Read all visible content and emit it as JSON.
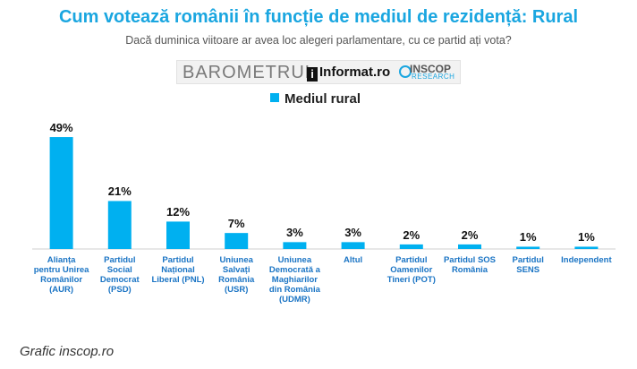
{
  "header": {
    "title": "Cum votează românii în funcție de mediul de rezidență: Rural",
    "subtitle": "Dacă duminica viitoare ar avea loc alegeri parlamentare, cu ce partid ați vota?"
  },
  "logos": {
    "barometrul": "BAROMETRUL",
    "informat": "Informat",
    "informat_suffix": "ro",
    "inscop": "INSCOP",
    "research": "RESEARCH"
  },
  "legend": {
    "label": "Mediul rural"
  },
  "caption": "Grafic inscop.ro",
  "colors": {
    "bar": "#00b0f0",
    "title": "#1aa6e0",
    "category": "#1a74c4"
  },
  "chart_data": {
    "type": "bar",
    "title": "Cum votează românii în funcție de mediul de rezidență: Rural",
    "subtitle": "Dacă duminica viitoare ar avea loc alegeri parlamentare, cu ce partid ați vota?",
    "xlabel": "",
    "ylabel": "",
    "ylim": [
      0,
      55
    ],
    "grid": false,
    "legend_position": "top-center",
    "categories": [
      "Alianța pentru Unirea Românilor (AUR)",
      "Partidul Social Democrat (PSD)",
      "Partidul Național Liberal (PNL)",
      "Uniunea Salvați România (USR)",
      "Uniunea Democrată a Maghiarilor din România (UDMR)",
      "Altul",
      "Partidul Oamenilor Tineri (POT)",
      "Partidul SOS România",
      "Partidul SENS",
      "Independent"
    ],
    "category_lines": [
      [
        "Alianța",
        "pentru Unirea",
        "Românilor",
        "(AUR)"
      ],
      [
        "Partidul",
        "Social",
        "Democrat",
        "(PSD)"
      ],
      [
        "Partidul",
        "Național",
        "Liberal (PNL)"
      ],
      [
        "Uniunea",
        "Salvați",
        "România",
        "(USR)"
      ],
      [
        "Uniunea",
        "Democrată a",
        "Maghiarilor",
        "din România",
        "(UDMR)"
      ],
      [
        "Altul"
      ],
      [
        "Partidul",
        "Oamenilor",
        "Tineri (POT)"
      ],
      [
        "Partidul SOS",
        "România"
      ],
      [
        "Partidul",
        "SENS"
      ],
      [
        "Independent"
      ]
    ],
    "series": [
      {
        "name": "Mediul rural",
        "values": [
          49,
          21,
          12,
          7,
          3,
          3,
          2,
          2,
          1,
          1
        ],
        "labels": [
          "49%",
          "21%",
          "12%",
          "7%",
          "3%",
          "3%",
          "2%",
          "2%",
          "1%",
          "1%"
        ]
      }
    ]
  }
}
